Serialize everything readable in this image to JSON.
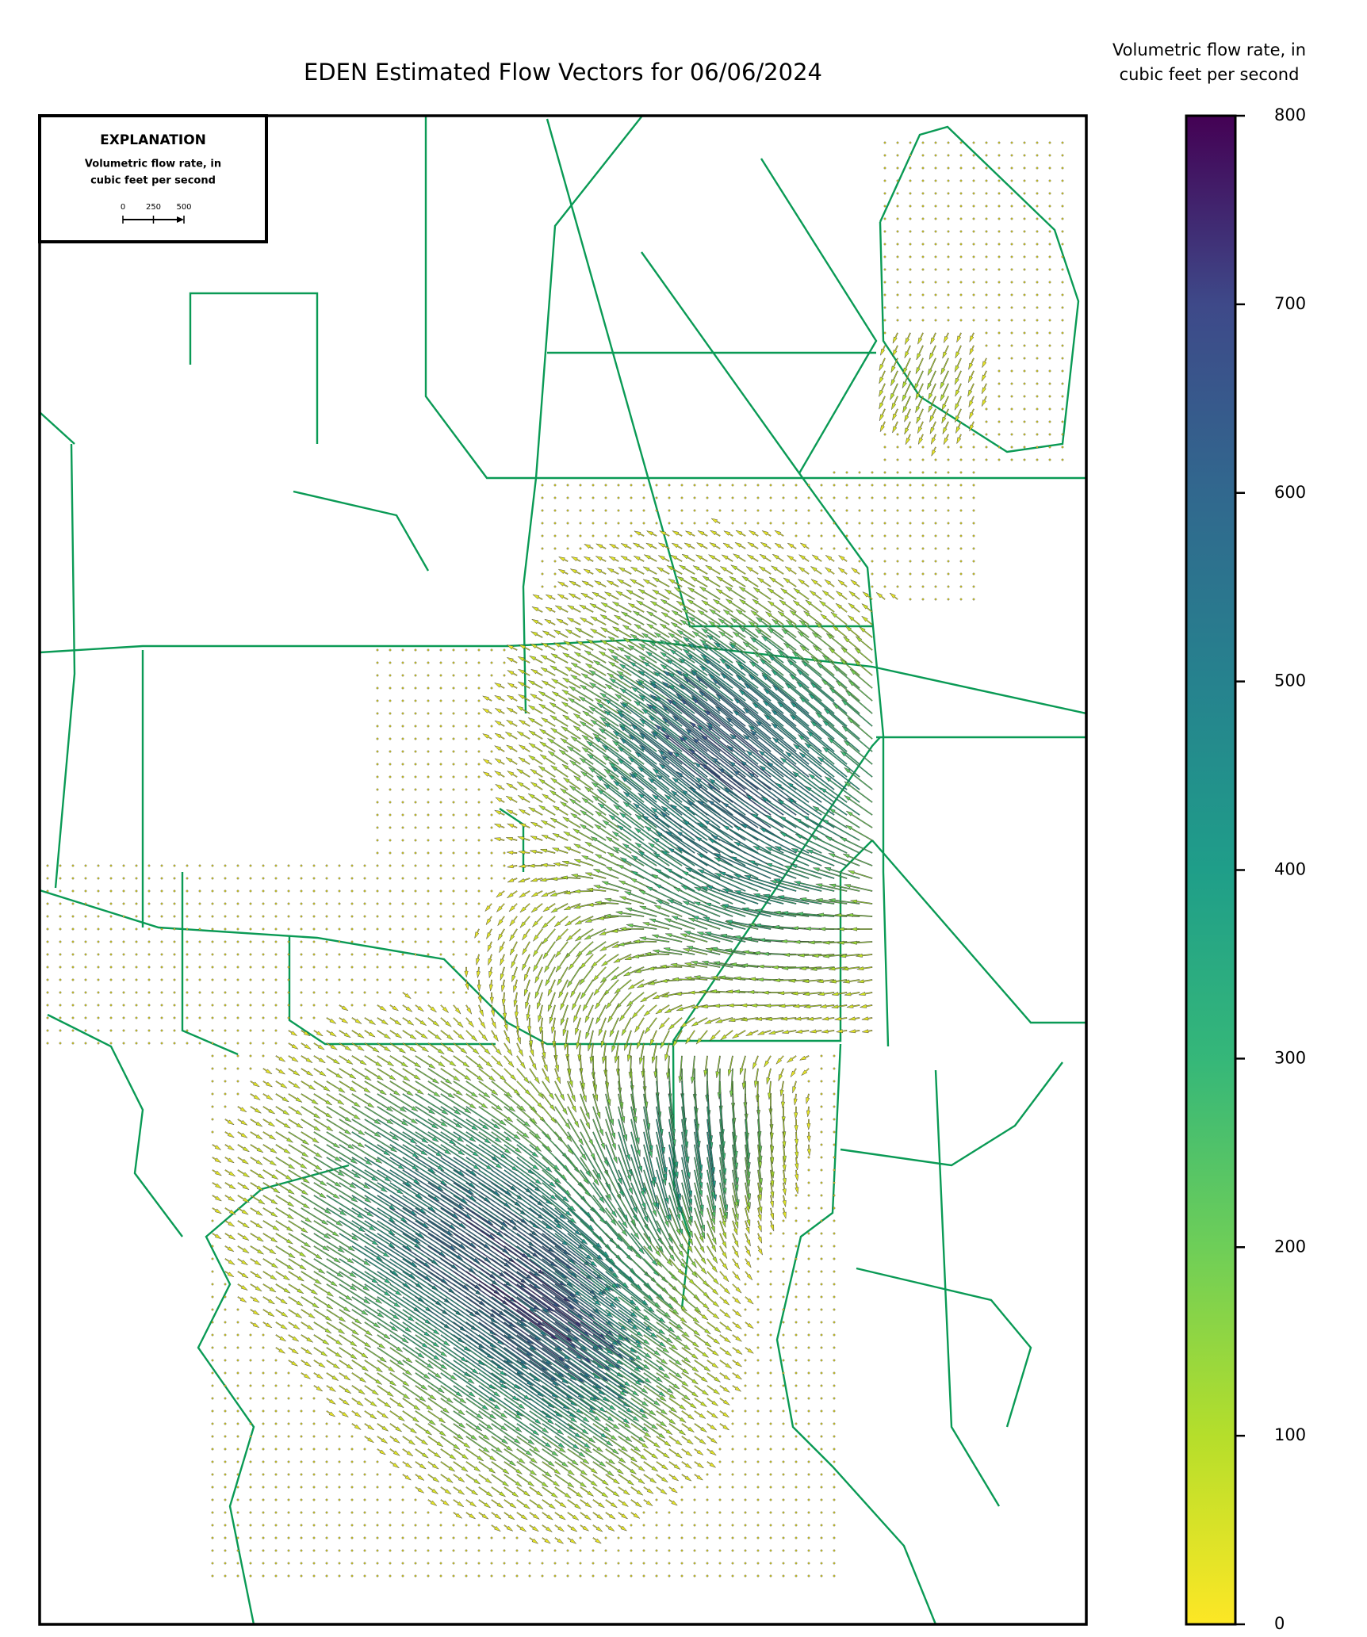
{
  "map": {
    "title": "EDEN Estimated Flow Vectors for 06/06/2024",
    "explanation": {
      "heading": "EXPLANATION",
      "label_lines": [
        "Volumetric flow rate, in",
        "cubic feet per second"
      ],
      "scale_ticks": [
        0,
        250,
        500
      ]
    },
    "colorbar": {
      "label_lines": [
        "Volumetric flow rate, in",
        "cubic feet per second"
      ],
      "lim": [
        0,
        800
      ],
      "ticks": [
        0,
        100,
        200,
        300,
        400,
        500,
        600,
        700,
        800
      ]
    }
  }
}
